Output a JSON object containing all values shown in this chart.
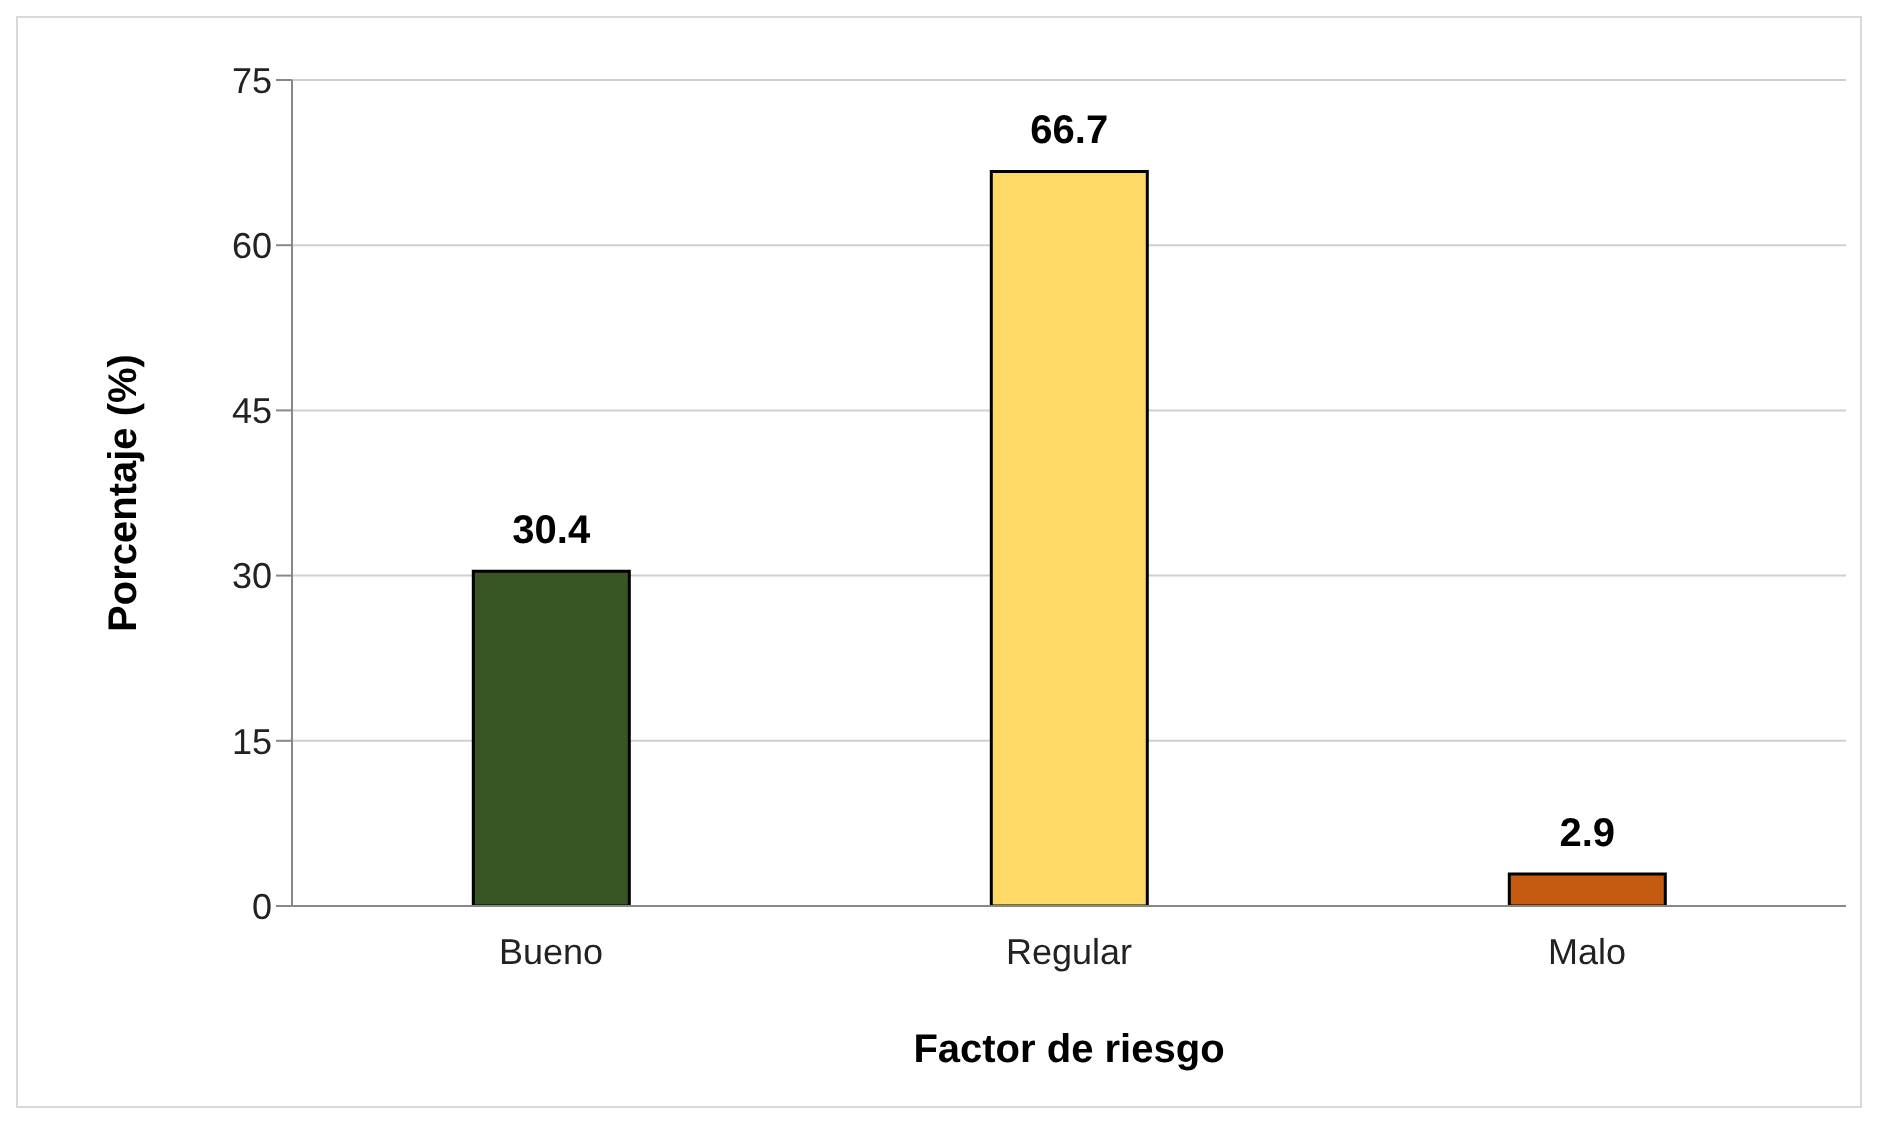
{
  "chart_data": {
    "type": "bar",
    "xlabel": "Factor de riesgo",
    "ylabel": "Porcentaje (%)",
    "categories": [
      "Bueno",
      "Regular",
      "Malo"
    ],
    "values": [
      30.4,
      66.7,
      2.9
    ],
    "colors": [
      "#375623",
      "#ffd966",
      "#c55a11"
    ],
    "ylim": [
      0,
      75
    ],
    "yticks": [
      0,
      15,
      30,
      45,
      60,
      75
    ],
    "grid": "y",
    "data_labels": true
  }
}
